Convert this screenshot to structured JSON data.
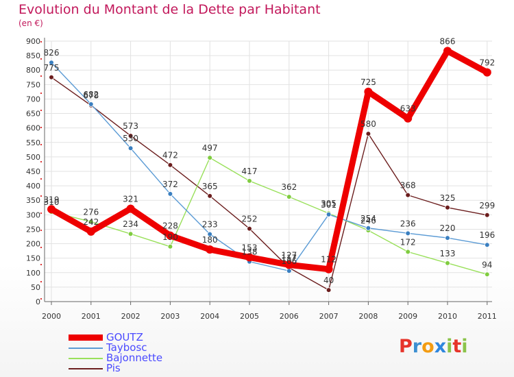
{
  "title": "Evolution du Montant de la Dette par Habitant",
  "unit": "(en €)",
  "logo": {
    "text": "Proxiti",
    "letters": [
      {
        "ch": "P",
        "color": "#e6342a"
      },
      {
        "ch": "r",
        "color": "#3d8fd1"
      },
      {
        "ch": "o",
        "color": "#f39c12"
      },
      {
        "ch": "x",
        "color": "#2e86de"
      },
      {
        "ch": "i",
        "color": "#8bc34a"
      },
      {
        "ch": "t",
        "color": "#e6342a"
      },
      {
        "ch": "i",
        "color": "#8bc34a"
      }
    ]
  },
  "chart_data": {
    "type": "line",
    "title": "Evolution du Montant de la Dette par Habitant",
    "ylabel": "(en €)",
    "xlabel": "",
    "x": [
      "2000",
      "2001",
      "2002",
      "2003",
      "2004",
      "2005",
      "2006",
      "2007",
      "2008",
      "2009",
      "2010",
      "2011"
    ],
    "ylim": [
      0,
      900
    ],
    "yticks": [
      0,
      50,
      100,
      150,
      200,
      250,
      300,
      350,
      400,
      450,
      500,
      550,
      600,
      650,
      700,
      750,
      800,
      850,
      900
    ],
    "grid": true,
    "legend_position": "bottom-left",
    "series": [
      {
        "name": "Pis",
        "color": "#6b1d1d",
        "marker": "#6b1d1d",
        "values": [
          775,
          678,
          573,
          472,
          365,
          252,
          117,
          40,
          580,
          368,
          325,
          299
        ]
      },
      {
        "name": "Bajonnette",
        "color": "#99e05a",
        "marker": "#80cc40",
        "values": [
          310,
          276,
          234,
          190,
          497,
          417,
          362,
          305,
          246,
          172,
          133,
          94
        ]
      },
      {
        "name": "Taybosc",
        "color": "#5b9bd5",
        "marker": "#3a7fc0",
        "values": [
          826,
          682,
          530,
          372,
          233,
          138,
          106,
          301,
          254,
          236,
          220,
          196
        ]
      },
      {
        "name": "GOUTZ",
        "color": "#ee0000",
        "marker": "#ee0000",
        "values": [
          319,
          242,
          321,
          228,
          180,
          153,
          127,
          112,
          725,
          633,
          866,
          792
        ]
      }
    ],
    "label_texts": {
      "Pis": [
        "775",
        "678",
        "573",
        "472",
        "365",
        "252",
        "117",
        "40",
        "580",
        "368",
        "325",
        "299"
      ],
      "Bajonnette": [
        "310",
        "276",
        "234",
        "190",
        "497",
        "417",
        "362",
        "305",
        "246",
        "172",
        "133",
        "94"
      ],
      "Taybosc": [
        "826",
        "682",
        "530",
        "372",
        "233",
        "138",
        "106",
        "301",
        "254",
        "236",
        "220",
        "196"
      ],
      "GOUTZ": [
        "319",
        "242",
        "321",
        "228",
        "180",
        "153",
        "127",
        "112",
        "725",
        "633",
        "866",
        "792"
      ]
    }
  },
  "legend": {
    "items": [
      {
        "name": "GOUTZ",
        "color": "#ee0000",
        "thick": true
      },
      {
        "name": "Taybosc",
        "color": "#5b9bd5",
        "thick": false
      },
      {
        "name": "Bajonnette",
        "color": "#99e05a",
        "thick": false
      },
      {
        "name": "Pis",
        "color": "#6b1d1d",
        "thick": false
      }
    ]
  }
}
